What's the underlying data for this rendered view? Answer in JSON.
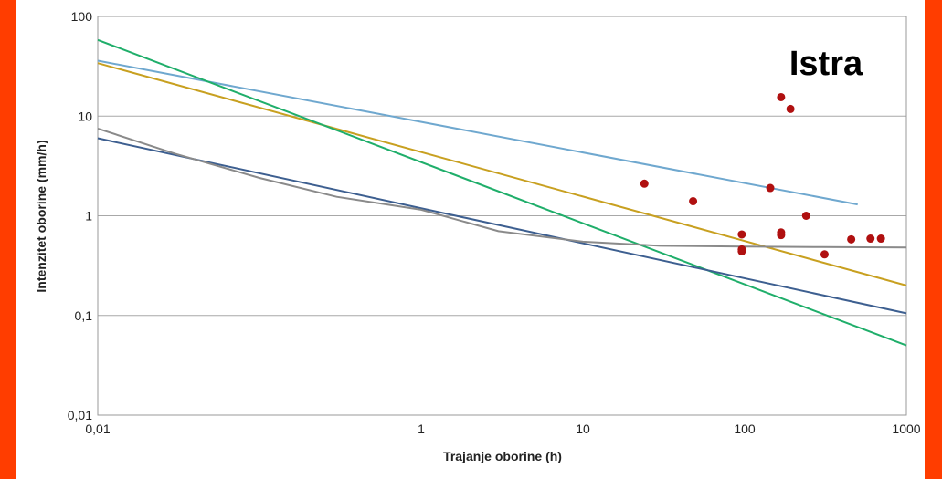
{
  "chart_data": {
    "type": "line",
    "title": "Istra",
    "xlabel": "Trajanje oborine (h)",
    "ylabel": "Intenzitet oborine (mm/h)",
    "x_scale": "log",
    "y_scale": "log",
    "xlim": [
      0.01,
      1000
    ],
    "ylim": [
      0.01,
      100
    ],
    "grid": "horizontal",
    "x_ticks": [
      {
        "value": 0.01,
        "label": "0,01"
      },
      {
        "value": 1,
        "label": "1"
      },
      {
        "value": 10,
        "label": "10"
      },
      {
        "value": 100,
        "label": "100"
      },
      {
        "value": 1000,
        "label": "1000"
      }
    ],
    "y_ticks": [
      {
        "value": 0.01,
        "label": "0,01"
      },
      {
        "value": 0.1,
        "label": "0,1"
      },
      {
        "value": 1,
        "label": "1"
      },
      {
        "value": 10,
        "label": "10"
      },
      {
        "value": 100,
        "label": "100"
      }
    ],
    "series": [
      {
        "color": "#6fa8cf",
        "x": [
          0.01,
          500
        ],
        "y": [
          36,
          1.3
        ]
      },
      {
        "color": "#c8a020",
        "x": [
          0.01,
          1000
        ],
        "y": [
          34,
          0.2
        ]
      },
      {
        "color": "#1fae6a",
        "x": [
          0.01,
          1000
        ],
        "y": [
          58,
          0.05
        ]
      },
      {
        "color": "#3d5f90",
        "x": [
          0.01,
          1000
        ],
        "y": [
          6,
          0.105
        ]
      },
      {
        "color": "#8a8a8a",
        "x": [
          0.01,
          0.03,
          0.1,
          0.3,
          1,
          3,
          10,
          30,
          100,
          300,
          1000
        ],
        "y": [
          7.5,
          4.2,
          2.4,
          1.55,
          1.15,
          0.7,
          0.55,
          0.5,
          0.49,
          0.485,
          0.48
        ]
      }
    ],
    "scatter": {
      "color": "#b01010",
      "points": [
        {
          "x": 24,
          "y": 2.1
        },
        {
          "x": 48,
          "y": 1.4
        },
        {
          "x": 96,
          "y": 0.65
        },
        {
          "x": 96,
          "y": 0.46
        },
        {
          "x": 96,
          "y": 0.44
        },
        {
          "x": 144,
          "y": 1.9
        },
        {
          "x": 168,
          "y": 15.5
        },
        {
          "x": 168,
          "y": 0.68
        },
        {
          "x": 168,
          "y": 0.64
        },
        {
          "x": 192,
          "y": 11.8
        },
        {
          "x": 240,
          "y": 1.0
        },
        {
          "x": 312,
          "y": 0.41
        },
        {
          "x": 456,
          "y": 0.58
        },
        {
          "x": 600,
          "y": 0.59
        },
        {
          "x": 696,
          "y": 0.59
        }
      ]
    }
  }
}
